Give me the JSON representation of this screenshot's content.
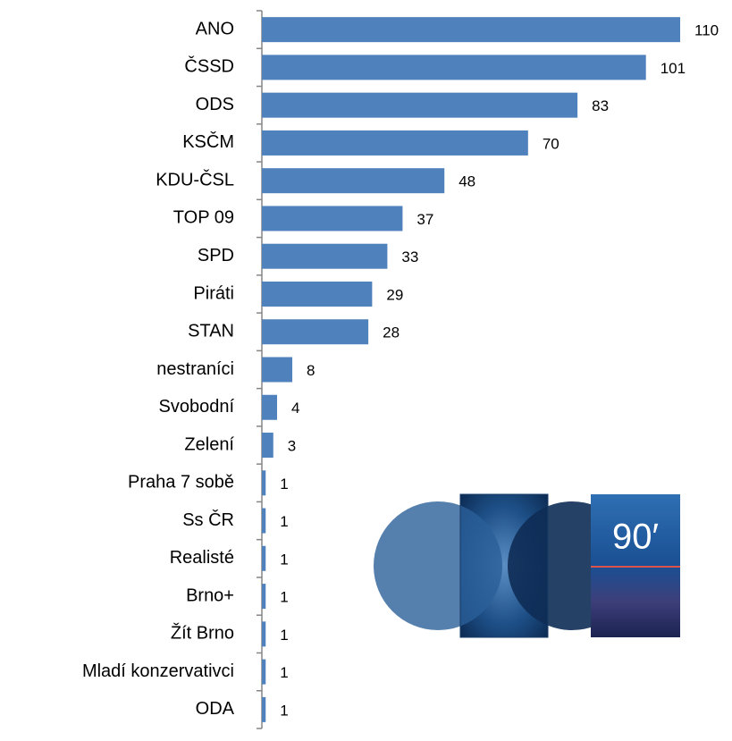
{
  "chart_data": {
    "type": "bar",
    "orientation": "horizontal",
    "categories": [
      "ANO",
      "ČSSD",
      "ODS",
      "KSČM",
      "KDU-ČSL",
      "TOP 09",
      "SPD",
      "Piráti",
      "STAN",
      "nestraníci",
      "Svobodní",
      "Zelení",
      "Praha 7 sobě",
      "Ss ČR",
      "Realisté",
      "Brno+",
      "Žít Brno",
      "Mladí konzervativci",
      "ODA"
    ],
    "values": [
      110,
      101,
      83,
      70,
      48,
      37,
      33,
      29,
      28,
      8,
      4,
      3,
      1,
      1,
      1,
      1,
      1,
      1,
      1
    ],
    "color": "#4f81bd"
  },
  "logos": {
    "text": "90′"
  }
}
